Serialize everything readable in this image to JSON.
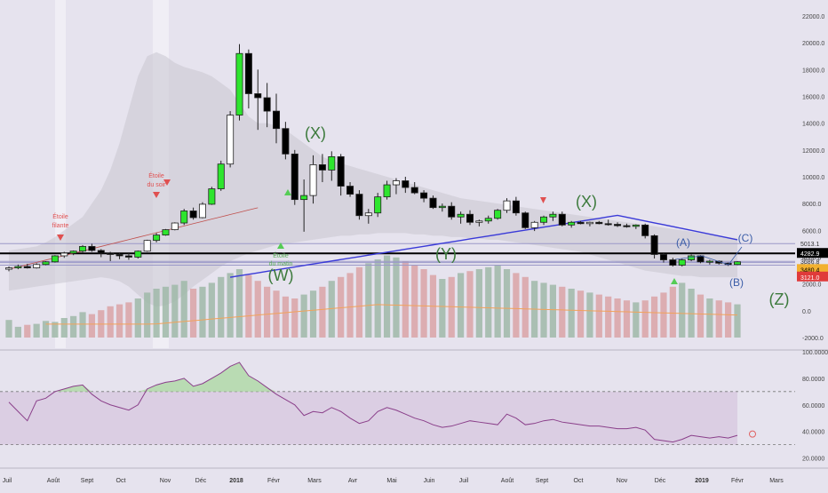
{
  "colors": {
    "background": "#e6e3ee",
    "up": "#2ee52e",
    "up_hollow": "#ffffff",
    "down": "#000000",
    "ma_blue": "#3a3ad8",
    "ma_orange": "#f2a25a",
    "ma_red": "#c0504d",
    "band_fill": "#c9c6cf",
    "vol_up": "#9fb8a8",
    "vol_down": "#d9a3a6",
    "wave_green": "#3c7a3c",
    "wave_blue": "#3b5da8",
    "rsi_line": "#8a3f8a",
    "rsi_fill": "#d8c8e0",
    "rsi_over": "#aed8a4",
    "price_black": "#000000",
    "price_orange": "#f2b130",
    "price_red": "#e03a3a"
  },
  "chart_data": {
    "type": "candlestick",
    "title": "",
    "y_axis": {
      "ticks": [
        "22000.0",
        "20000.0",
        "18000.0",
        "16000.0",
        "14000.0",
        "12000.0",
        "10000.0",
        "8000.0",
        "6000.0",
        "4000.0",
        "2000.0",
        "0.0",
        "-2000.0"
      ],
      "range": [
        -2000,
        22000
      ]
    },
    "x_axis": {
      "labels": [
        "Juil",
        "Août",
        "Sept",
        "Oct",
        "Nov",
        "Déc",
        "2018",
        "Févr",
        "Mars",
        "Avr",
        "Mai",
        "Juin",
        "Juil",
        "Août",
        "Sept",
        "Oct",
        "Nov",
        "Déc",
        "2019",
        "Févr",
        "Mars"
      ],
      "bold": [
        "2018",
        "2019"
      ]
    },
    "price_labels": [
      {
        "text": "5013.1",
        "style": "plain"
      },
      {
        "text": "4282.9",
        "style": "black"
      },
      {
        "text": "3686.8",
        "style": "plain"
      },
      {
        "text": "3594.8",
        "style": "plain"
      },
      {
        "text": "3480.4",
        "style": "orange"
      },
      {
        "text": "3121.0",
        "style": "red"
      }
    ],
    "annotations": [
      {
        "text": "Étoile filante",
        "color": "#e05050"
      },
      {
        "text": "Étoile du soir",
        "color": "#e05050"
      },
      {
        "text": "Étoile du matin",
        "color": "#55aa55"
      }
    ],
    "waves": [
      {
        "text": "(W)",
        "color": "#3c7a3c"
      },
      {
        "text": "(X)",
        "color": "#3c7a3c"
      },
      {
        "text": "(Y)",
        "color": "#3c7a3c"
      },
      {
        "text": "(X)",
        "color": "#3c7a3c"
      },
      {
        "text": "(Z)",
        "color": "#3c7a3c"
      },
      {
        "text": "(A)",
        "color": "#3b5da8"
      },
      {
        "text": "(B)",
        "color": "#3b5da8"
      },
      {
        "text": "(C)",
        "color": "#3b5da8"
      }
    ],
    "candles": [
      [
        3100,
        3300,
        2950,
        3200
      ],
      [
        3200,
        3450,
        3100,
        3300
      ],
      [
        3300,
        3500,
        3150,
        3200
      ],
      [
        3200,
        3550,
        3150,
        3450
      ],
      [
        3450,
        3700,
        3400,
        3650
      ],
      [
        3650,
        4150,
        3600,
        4100
      ],
      [
        4100,
        4400,
        3950,
        4300
      ],
      [
        4300,
        4500,
        4150,
        4450
      ],
      [
        4450,
        4900,
        4300,
        4800
      ],
      [
        4800,
        5000,
        4400,
        4500
      ],
      [
        4500,
        4600,
        4000,
        4300
      ],
      [
        4300,
        4400,
        3700,
        4200
      ],
      [
        4200,
        4300,
        3850,
        4100
      ],
      [
        4100,
        4300,
        3800,
        4000
      ],
      [
        4000,
        4500,
        3900,
        4450
      ],
      [
        4450,
        5300,
        4400,
        5250
      ],
      [
        5250,
        5800,
        5100,
        5650
      ],
      [
        5650,
        6100,
        5600,
        6050
      ],
      [
        6050,
        6600,
        6000,
        6550
      ],
      [
        6550,
        7600,
        6400,
        7450
      ],
      [
        7450,
        7700,
        6800,
        6950
      ],
      [
        6950,
        8100,
        6900,
        7950
      ],
      [
        7950,
        9250,
        7900,
        9100
      ],
      [
        9100,
        11200,
        8950,
        10950
      ],
      [
        10950,
        14900,
        10700,
        14600
      ],
      [
        14600,
        19900,
        14200,
        19200
      ],
      [
        19200,
        19500,
        15100,
        16200
      ],
      [
        16200,
        18000,
        13500,
        15900
      ],
      [
        15900,
        17000,
        13700,
        14900
      ],
      [
        14900,
        16200,
        12500,
        13600
      ],
      [
        13600,
        14100,
        11300,
        11700
      ],
      [
        11700,
        12000,
        7900,
        8300
      ],
      [
        8300,
        9800,
        5900,
        8600
      ],
      [
        8600,
        11600,
        8000,
        10900
      ],
      [
        10900,
        11700,
        9600,
        10500
      ],
      [
        10500,
        11900,
        9700,
        11500
      ],
      [
        11500,
        11700,
        8600,
        9300
      ],
      [
        9300,
        9600,
        8500,
        8700
      ],
      [
        8700,
        9000,
        6800,
        7100
      ],
      [
        7100,
        7600,
        6500,
        7300
      ],
      [
        7300,
        8800,
        7000,
        8500
      ],
      [
        8500,
        9700,
        8300,
        9400
      ],
      [
        9400,
        9900,
        8700,
        9700
      ],
      [
        9700,
        10000,
        8800,
        9200
      ],
      [
        9200,
        9600,
        8700,
        8800
      ],
      [
        8800,
        9000,
        8100,
        8400
      ],
      [
        8400,
        8600,
        7600,
        7700
      ],
      [
        7700,
        8000,
        7400,
        7800
      ],
      [
        7800,
        8100,
        6800,
        7000
      ],
      [
        7000,
        7400,
        6500,
        7200
      ],
      [
        7200,
        7500,
        6400,
        6600
      ],
      [
        6600,
        6800,
        6300,
        6700
      ],
      [
        6700,
        7100,
        6500,
        6900
      ],
      [
        6900,
        7600,
        6800,
        7500
      ],
      [
        7500,
        8400,
        7300,
        8200
      ],
      [
        8200,
        8500,
        7100,
        7300
      ],
      [
        7300,
        7400,
        6100,
        6200
      ],
      [
        6200,
        6700,
        5950,
        6600
      ],
      [
        6600,
        7100,
        6400,
        7000
      ],
      [
        7000,
        7400,
        6700,
        7200
      ],
      [
        7200,
        7400,
        6300,
        6400
      ],
      [
        6400,
        6700,
        6200,
        6600
      ],
      [
        6600,
        6700,
        6450,
        6500
      ],
      [
        6500,
        6650,
        6300,
        6600
      ],
      [
        6600,
        6700,
        6450,
        6500
      ],
      [
        6500,
        6800,
        6350,
        6450
      ],
      [
        6450,
        6600,
        6250,
        6350
      ],
      [
        6350,
        6500,
        6200,
        6300
      ],
      [
        6300,
        6450,
        6100,
        6400
      ],
      [
        6400,
        6500,
        5400,
        5600
      ],
      [
        5600,
        5700,
        3900,
        4200
      ],
      [
        4200,
        4300,
        3600,
        3800
      ],
      [
        3800,
        3950,
        3300,
        3400
      ],
      [
        3400,
        3900,
        3300,
        3800
      ],
      [
        3800,
        4200,
        3700,
        4100
      ],
      [
        4100,
        4150,
        3550,
        3650
      ],
      [
        3650,
        3800,
        3450,
        3700
      ],
      [
        3700,
        3750,
        3450,
        3550
      ],
      [
        3550,
        3600,
        3350,
        3450
      ],
      [
        3450,
        3700,
        3400,
        3650
      ]
    ],
    "volume": [
      {
        "values": [
          0.9,
          0.55,
          0.65,
          0.7,
          0.85,
          0.8,
          1.0,
          1.1,
          1.3,
          1.2,
          1.4,
          1.6,
          1.7,
          1.8,
          2.0,
          2.3,
          2.5,
          2.6,
          2.7,
          2.9,
          2.5,
          2.6,
          2.8,
          3.1,
          3.3,
          3.5,
          3.2,
          2.9,
          2.6,
          2.4,
          2.1,
          2.0,
          2.2,
          2.4,
          2.6,
          2.9,
          3.1,
          3.3,
          3.6,
          3.8,
          4.0,
          4.2,
          4.1,
          3.9,
          3.7,
          3.5,
          3.2,
          3.0,
          3.1,
          3.3,
          3.4,
          3.5,
          3.6,
          3.7,
          3.5,
          3.3,
          3.1,
          2.9,
          2.8,
          2.7,
          2.6,
          2.5,
          2.4,
          2.3,
          2.2,
          2.1,
          2.0,
          1.9,
          1.8,
          1.9,
          2.1,
          2.3,
          2.6,
          2.8,
          2.5,
          2.2,
          2.0,
          1.9,
          1.8,
          1.7
        ]
      }
    ],
    "rsi": {
      "ticks": [
        "100.0000",
        "80.0000",
        "60.0000",
        "40.0000",
        "20.0000"
      ],
      "range": [
        15,
        100
      ],
      "upper": 70,
      "lower": 30,
      "values": [
        62,
        55,
        48,
        63,
        65,
        70,
        72,
        74,
        75,
        68,
        63,
        60,
        58,
        56,
        60,
        72,
        75,
        77,
        78,
        80,
        74,
        76,
        80,
        84,
        89,
        92,
        82,
        78,
        73,
        68,
        64,
        60,
        52,
        55,
        54,
        58,
        55,
        50,
        46,
        48,
        55,
        58,
        56,
        53,
        50,
        48,
        45,
        43,
        44,
        46,
        48,
        47,
        46,
        45,
        53,
        50,
        45,
        46,
        48,
        49,
        47,
        46,
        45,
        44,
        44,
        43,
        42,
        42,
        43,
        41,
        34,
        33,
        32,
        34,
        37,
        36,
        35,
        36,
        35,
        37
      ]
    }
  }
}
